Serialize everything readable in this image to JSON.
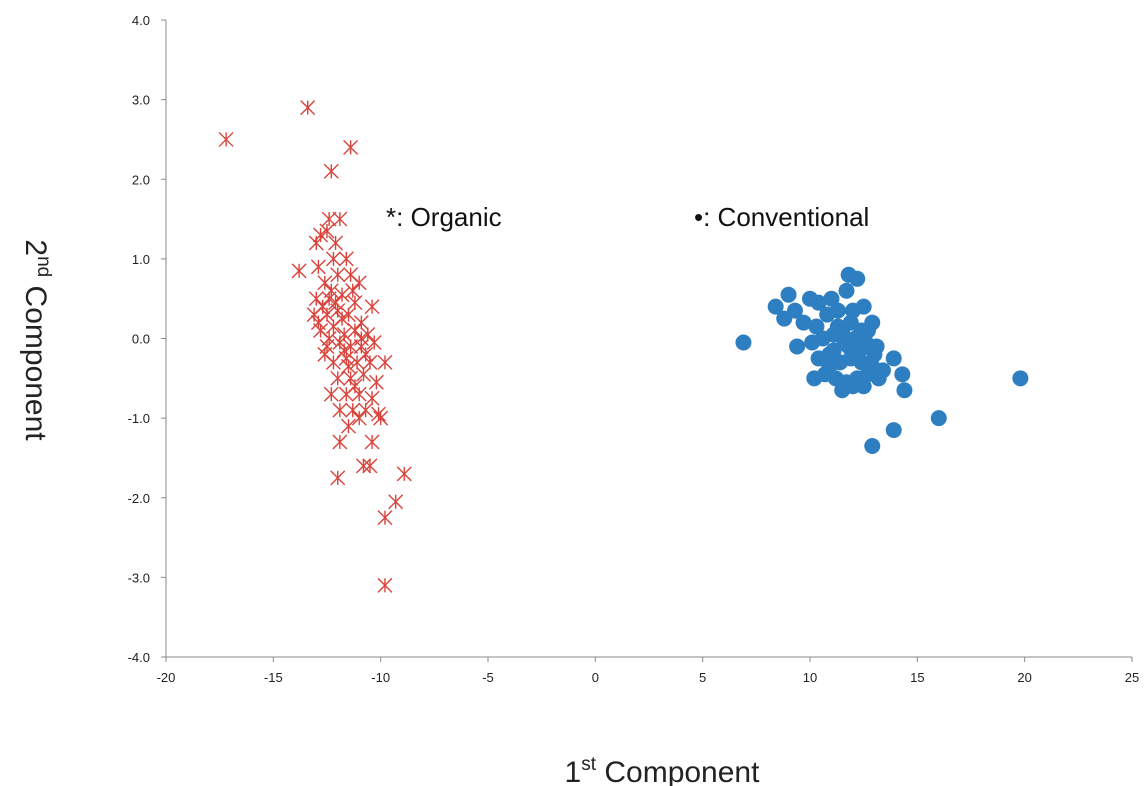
{
  "chart_data": {
    "type": "scatter",
    "title": "",
    "xlabel": {
      "base": "1",
      "sup": "st",
      "rest": " Component"
    },
    "ylabel": {
      "base": "2",
      "sup": "nd",
      "rest": " Component"
    },
    "xlim": [
      -20,
      25
    ],
    "ylim": [
      -4.0,
      4.0
    ],
    "x_ticks": [
      -20,
      -15,
      -10,
      -5,
      0,
      5,
      10,
      15,
      20,
      25
    ],
    "x_tick_labels": [
      "-20",
      "-15",
      "-10",
      "-5",
      "0",
      "5",
      "10",
      "15",
      "20",
      "25"
    ],
    "y_ticks": [
      -4,
      -3,
      -2,
      -1,
      0,
      1,
      2,
      3,
      4
    ],
    "y_tick_labels": [
      "-4.0",
      "-3.0",
      "-2.0",
      "-1.0",
      "0.0",
      "1.0",
      "2.0",
      "3.0",
      "4.0"
    ],
    "grid": false,
    "legend_position": "top, inside plot area",
    "series": [
      {
        "name": "Organic",
        "legend_label": "*: Organic",
        "marker": "asterisk",
        "color": "#d9433b",
        "points": [
          [
            -17.2,
            2.5
          ],
          [
            -13.4,
            2.9
          ],
          [
            -11.4,
            2.4
          ],
          [
            -12.3,
            2.1
          ],
          [
            -12.4,
            1.5
          ],
          [
            -11.9,
            1.5
          ],
          [
            -12.8,
            1.3
          ],
          [
            -12.5,
            1.35
          ],
          [
            -12.1,
            1.2
          ],
          [
            -13.0,
            1.2
          ],
          [
            -13.8,
            0.85
          ],
          [
            -12.9,
            0.9
          ],
          [
            -12.2,
            1.0
          ],
          [
            -11.6,
            1.0
          ],
          [
            -12.6,
            0.7
          ],
          [
            -12.0,
            0.8
          ],
          [
            -11.4,
            0.8
          ],
          [
            -11.0,
            0.7
          ],
          [
            -13.0,
            0.5
          ],
          [
            -12.4,
            0.5
          ],
          [
            -11.8,
            0.55
          ],
          [
            -11.2,
            0.45
          ],
          [
            -10.4,
            0.4
          ],
          [
            -13.1,
            0.3
          ],
          [
            -12.5,
            0.3
          ],
          [
            -12.0,
            0.35
          ],
          [
            -11.5,
            0.3
          ],
          [
            -10.9,
            0.2
          ],
          [
            -12.8,
            0.1
          ],
          [
            -12.2,
            0.15
          ],
          [
            -11.7,
            0.05
          ],
          [
            -11.2,
            0.1
          ],
          [
            -10.6,
            0.05
          ],
          [
            -12.5,
            -0.1
          ],
          [
            -11.9,
            -0.05
          ],
          [
            -11.4,
            -0.1
          ],
          [
            -10.9,
            -0.1
          ],
          [
            -10.3,
            -0.05
          ],
          [
            -12.2,
            -0.3
          ],
          [
            -11.6,
            -0.25
          ],
          [
            -11.1,
            -0.3
          ],
          [
            -10.5,
            -0.3
          ],
          [
            -9.8,
            -0.3
          ],
          [
            -12.0,
            -0.5
          ],
          [
            -11.4,
            -0.5
          ],
          [
            -10.8,
            -0.45
          ],
          [
            -10.2,
            -0.55
          ],
          [
            -12.3,
            -0.7
          ],
          [
            -11.6,
            -0.7
          ],
          [
            -11.0,
            -0.7
          ],
          [
            -10.4,
            -0.75
          ],
          [
            -11.9,
            -0.9
          ],
          [
            -11.3,
            -0.9
          ],
          [
            -10.7,
            -0.9
          ],
          [
            -10.1,
            -0.95
          ],
          [
            -11.5,
            -1.1
          ],
          [
            -10.0,
            -1.0
          ],
          [
            -11.9,
            -1.3
          ],
          [
            -10.4,
            -1.3
          ],
          [
            -10.5,
            -1.6
          ],
          [
            -10.8,
            -1.6
          ],
          [
            -12.0,
            -1.75
          ],
          [
            -8.9,
            -1.7
          ],
          [
            -9.3,
            -2.05
          ],
          [
            -9.8,
            -2.25
          ],
          [
            -9.8,
            -3.1
          ],
          [
            -12.9,
            0.2
          ],
          [
            -12.7,
            0.4
          ],
          [
            -12.3,
            0.6
          ],
          [
            -11.8,
            0.25
          ],
          [
            -11.5,
            -0.35
          ],
          [
            -11.2,
            -0.6
          ],
          [
            -10.9,
            0.0
          ],
          [
            -12.1,
            0.45
          ],
          [
            -11.7,
            -0.15
          ],
          [
            -11.3,
            0.6
          ],
          [
            -12.6,
            -0.2
          ],
          [
            -10.7,
            -0.2
          ],
          [
            -11.0,
            -1.0
          ],
          [
            -12.4,
            0.0
          ]
        ]
      },
      {
        "name": "Conventional",
        "legend_label": "•: Conventional",
        "marker": "circle",
        "color": "#2e7fc1",
        "points": [
          [
            6.9,
            -0.05
          ],
          [
            8.4,
            0.4
          ],
          [
            9.0,
            0.55
          ],
          [
            8.8,
            0.25
          ],
          [
            9.3,
            0.35
          ],
          [
            9.7,
            0.2
          ],
          [
            9.4,
            -0.1
          ],
          [
            10.0,
            0.5
          ],
          [
            10.4,
            0.45
          ],
          [
            11.0,
            0.5
          ],
          [
            11.8,
            0.8
          ],
          [
            12.2,
            0.75
          ],
          [
            11.7,
            0.6
          ],
          [
            12.5,
            0.4
          ],
          [
            12.9,
            0.2
          ],
          [
            10.3,
            0.15
          ],
          [
            10.8,
            0.3
          ],
          [
            11.3,
            0.35
          ],
          [
            11.9,
            0.2
          ],
          [
            12.4,
            0.1
          ],
          [
            10.1,
            -0.05
          ],
          [
            10.6,
            0.0
          ],
          [
            11.1,
            0.05
          ],
          [
            11.6,
            -0.05
          ],
          [
            12.1,
            0.0
          ],
          [
            12.6,
            -0.05
          ],
          [
            13.1,
            -0.1
          ],
          [
            10.4,
            -0.25
          ],
          [
            10.9,
            -0.2
          ],
          [
            11.4,
            -0.3
          ],
          [
            11.9,
            -0.25
          ],
          [
            12.4,
            -0.3
          ],
          [
            12.9,
            -0.35
          ],
          [
            13.4,
            -0.4
          ],
          [
            10.2,
            -0.5
          ],
          [
            10.7,
            -0.45
          ],
          [
            11.2,
            -0.5
          ],
          [
            11.7,
            -0.55
          ],
          [
            12.2,
            -0.5
          ],
          [
            12.7,
            -0.45
          ],
          [
            13.2,
            -0.5
          ],
          [
            11.5,
            -0.65
          ],
          [
            12.0,
            -0.6
          ],
          [
            12.5,
            -0.6
          ],
          [
            13.9,
            -0.25
          ],
          [
            14.3,
            -0.45
          ],
          [
            14.4,
            -0.65
          ],
          [
            16.0,
            -1.0
          ],
          [
            13.9,
            -1.15
          ],
          [
            12.9,
            -1.35
          ],
          [
            19.8,
            -0.5
          ],
          [
            11.3,
            0.15
          ],
          [
            11.8,
            -0.1
          ],
          [
            12.3,
            -0.15
          ],
          [
            10.9,
            -0.35
          ],
          [
            11.5,
            0.1
          ],
          [
            12.0,
            0.35
          ],
          [
            11.1,
            -0.15
          ],
          [
            12.7,
            0.1
          ],
          [
            13.0,
            -0.2
          ]
        ]
      }
    ]
  }
}
